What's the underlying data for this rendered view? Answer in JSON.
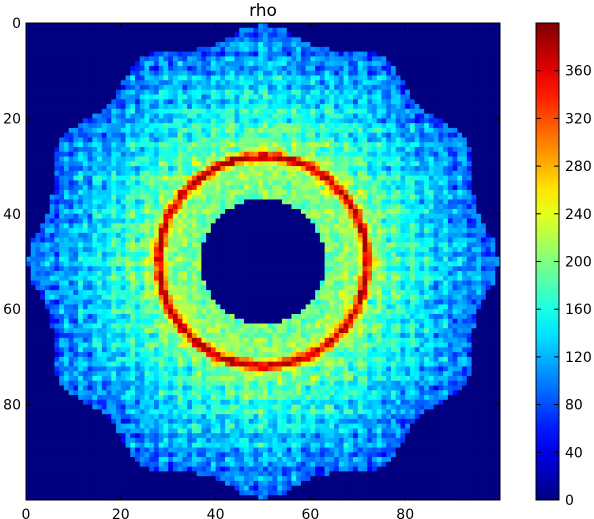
{
  "chart_data": {
    "type": "heatmap",
    "title": "rho",
    "xlabel": "",
    "ylabel": "",
    "grid_shape": [
      100,
      100
    ],
    "x_range": [
      0,
      100
    ],
    "y_range": [
      0,
      100
    ],
    "y_inverted": true,
    "x_ticks": [
      0,
      20,
      40,
      60,
      80
    ],
    "y_ticks": [
      0,
      20,
      40,
      60,
      80
    ],
    "colormap": "jet",
    "color_range": [
      0,
      400
    ],
    "colorbar_ticks": [
      0,
      40,
      80,
      120,
      160,
      200,
      240,
      280,
      320,
      360
    ],
    "structure": {
      "center": [
        50,
        50
      ],
      "hole_radius": 13,
      "peak_ring_radius": 22,
      "peak_value": 370,
      "outer_radius": 48,
      "outer_edge_value": 90,
      "inner_plateau_value": 190,
      "background_value": 0,
      "outer_lobes": 12
    }
  }
}
